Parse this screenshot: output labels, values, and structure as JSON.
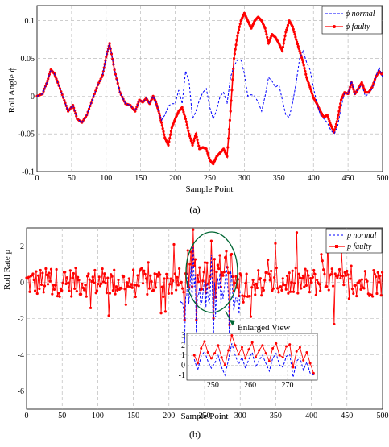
{
  "chart_data": [
    {
      "type": "line",
      "panel_label": "(a)",
      "xlabel": "Sample Point",
      "ylabel": "Roll Angle ϕ",
      "xlim": [
        0,
        500
      ],
      "ylim": [
        -0.1,
        0.12
      ],
      "xticks": [
        "0",
        "50",
        "100",
        "150",
        "200",
        "250",
        "300",
        "350",
        "400",
        "450",
        "500"
      ],
      "yticks": [
        "-0.1",
        "-0.05",
        "0",
        "0.05",
        "0.1"
      ],
      "grid": true,
      "legend": "top-right",
      "series": [
        {
          "name": "ϕ normal",
          "color": "#0000ff",
          "style": "dashed",
          "x": [
            0,
            8,
            15,
            20,
            25,
            30,
            38,
            45,
            52,
            58,
            65,
            72,
            80,
            88,
            95,
            100,
            105,
            112,
            120,
            128,
            135,
            142,
            148,
            153,
            158,
            163,
            168,
            172,
            176,
            180,
            185,
            190,
            195,
            200,
            205,
            210,
            215,
            220,
            225,
            230,
            235,
            240,
            245,
            250,
            255,
            260,
            265,
            270,
            275,
            280,
            285,
            290,
            295,
            300,
            305,
            310,
            315,
            320,
            325,
            330,
            335,
            340,
            345,
            350,
            355,
            360,
            365,
            370,
            375,
            380,
            385,
            390,
            395,
            400,
            405,
            410,
            415,
            420,
            425,
            430,
            435,
            440,
            445,
            450,
            455,
            460,
            465,
            470,
            475,
            480,
            485,
            490,
            495,
            500
          ],
          "y": [
            0,
            0.003,
            0.02,
            0.035,
            0.03,
            0.018,
            -0.002,
            -0.02,
            -0.012,
            -0.03,
            -0.035,
            -0.025,
            -0.005,
            0.015,
            0.028,
            0.052,
            0.07,
            0.035,
            0.005,
            -0.01,
            -0.012,
            -0.02,
            -0.005,
            -0.008,
            -0.003,
            -0.01,
            0.0,
            -0.008,
            -0.02,
            -0.032,
            -0.025,
            -0.013,
            -0.01,
            -0.01,
            0.008,
            -0.01,
            0.033,
            0.02,
            -0.03,
            -0.02,
            -0.005,
            0.005,
            0.01,
            -0.015,
            -0.03,
            -0.018,
            0.0,
            0.005,
            -0.01,
            0.025,
            0.04,
            0.048,
            0.048,
            0.03,
            0.0,
            0.002,
            0.0,
            -0.008,
            -0.02,
            0.0,
            0.025,
            0.02,
            0.012,
            0.015,
            -0.005,
            -0.025,
            -0.028,
            -0.008,
            0.018,
            0.05,
            0.06,
            0.045,
            0.035,
            0.012,
            -0.01,
            -0.025,
            -0.03,
            -0.035,
            -0.045,
            -0.05,
            -0.04,
            -0.015,
            0.005,
            0.003,
            0.02,
            0.003,
            0.01,
            0.015,
            0.0,
            0.003,
            0.01,
            0.025,
            0.038,
            0.025
          ]
        },
        {
          "name": "ϕ faulty",
          "color": "#ff0000",
          "style": "solid-markers",
          "x": [
            0,
            8,
            15,
            20,
            25,
            30,
            38,
            45,
            52,
            58,
            65,
            72,
            80,
            88,
            95,
            100,
            105,
            112,
            120,
            128,
            135,
            142,
            148,
            153,
            158,
            163,
            168,
            172,
            176,
            180,
            185,
            190,
            195,
            200,
            205,
            210,
            215,
            220,
            225,
            230,
            235,
            240,
            245,
            250,
            255,
            260,
            265,
            270,
            275,
            280,
            285,
            290,
            295,
            300,
            305,
            310,
            315,
            320,
            325,
            330,
            335,
            340,
            345,
            350,
            355,
            360,
            365,
            370,
            375,
            380,
            385,
            390,
            395,
            400,
            405,
            410,
            415,
            420,
            425,
            430,
            435,
            440,
            445,
            450,
            455,
            460,
            465,
            470,
            475,
            480,
            485,
            490,
            495,
            500
          ],
          "y": [
            0,
            0.003,
            0.02,
            0.035,
            0.03,
            0.018,
            -0.002,
            -0.02,
            -0.012,
            -0.03,
            -0.035,
            -0.025,
            -0.005,
            0.015,
            0.028,
            0.052,
            0.07,
            0.035,
            0.005,
            -0.01,
            -0.012,
            -0.02,
            -0.005,
            -0.008,
            -0.003,
            -0.01,
            0.0,
            -0.008,
            -0.02,
            -0.035,
            -0.055,
            -0.065,
            -0.042,
            -0.03,
            -0.02,
            -0.015,
            -0.03,
            -0.05,
            -0.065,
            -0.05,
            -0.07,
            -0.068,
            -0.07,
            -0.085,
            -0.09,
            -0.08,
            -0.075,
            -0.07,
            -0.08,
            -0.02,
            0.05,
            0.08,
            0.1,
            0.11,
            0.1,
            0.09,
            0.1,
            0.105,
            0.1,
            0.09,
            0.07,
            0.082,
            0.078,
            0.07,
            0.06,
            0.085,
            0.1,
            0.092,
            0.075,
            0.06,
            0.045,
            0.025,
            0.012,
            -0.002,
            -0.01,
            -0.02,
            -0.028,
            -0.025,
            -0.038,
            -0.048,
            -0.03,
            -0.005,
            0.005,
            0.003,
            0.018,
            0.003,
            0.01,
            0.018,
            0.005,
            0.005,
            0.012,
            0.025,
            0.033,
            0.028
          ]
        }
      ]
    },
    {
      "type": "line",
      "panel_label": "(b)",
      "xlabel": "Sample Point",
      "ylabel": "Roll Rate p",
      "xlim": [
        0,
        500
      ],
      "ylim": [
        -7,
        3
      ],
      "xticks": [
        "0",
        "50",
        "100",
        "150",
        "200",
        "250",
        "300",
        "350",
        "400",
        "450",
        "500"
      ],
      "yticks": [
        "-6",
        "-4",
        "-2",
        "0",
        "2"
      ],
      "grid": true,
      "legend": "top-right",
      "annotation": "Enlarged View",
      "series": [
        {
          "name": "p normal",
          "color": "#0000ff",
          "style": "dashed"
        },
        {
          "name": "p faulty",
          "color": "#ff0000",
          "style": "solid-markers"
        }
      ],
      "inset": {
        "title": "Enlarged View",
        "xlim": [
          243,
          278
        ],
        "ylim": [
          -1.5,
          3.2
        ],
        "xticks": [
          "250",
          "260",
          "270"
        ],
        "yticks": [
          "-1",
          "0",
          "1",
          "2",
          "3"
        ],
        "normal": [
          0.6,
          -0.5,
          0.9,
          1.4,
          0.4,
          -0.3,
          0.2,
          1.0,
          -0.2,
          -1.0,
          0.5,
          2.2,
          1.0,
          0.1,
          0.8,
          -0.3,
          0.6,
          1.3,
          -0.2,
          0.5,
          1.0,
          0.2,
          -0.6,
          0.7,
          1.2,
          0.0,
          -0.2,
          0.9,
          1.1,
          -1.2,
          0.4,
          0.8,
          -0.5,
          0.3,
          -0.8,
          -0.9
        ],
        "faulty": [
          1.0,
          0.2,
          1.7,
          2.4,
          1.3,
          0.7,
          1.2,
          2.0,
          0.8,
          0.0,
          1.5,
          3.0,
          2.0,
          1.1,
          1.8,
          0.7,
          1.6,
          2.3,
          0.8,
          1.5,
          2.0,
          1.2,
          0.4,
          1.7,
          2.2,
          1.0,
          0.8,
          1.9,
          2.1,
          -0.2,
          1.4,
          1.8,
          0.5,
          1.3,
          0.2,
          -0.8
        ]
      }
    }
  ]
}
